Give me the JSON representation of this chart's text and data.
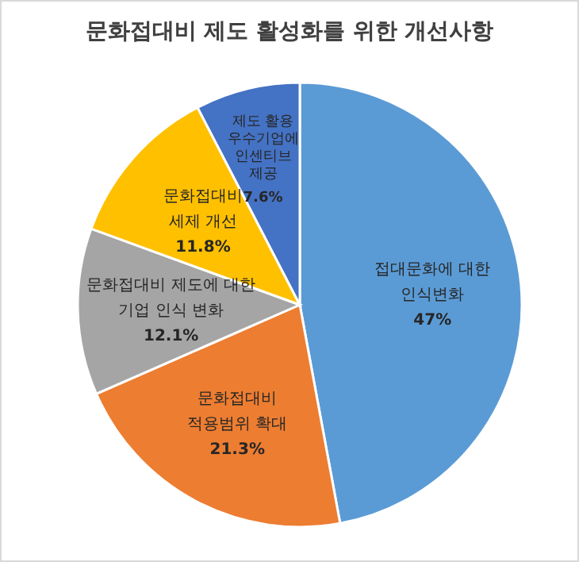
{
  "chart_data": {
    "type": "pie",
    "title": "문화접대비 제도 활성화를 위한 개선사항",
    "categories": [
      "접대문화에 대한\n인식변화",
      "문화접대비\n적용범위 확대",
      "문화접대비 제도에 대한\n기업 인식 변화",
      "문화접대비\n세제 개선",
      "제도 활용\n우수기업에\n인센티브\n제공"
    ],
    "values": [
      47,
      21.3,
      12.1,
      11.8,
      7.6
    ],
    "value_labels": [
      "47%",
      "21.3%",
      "12.1%",
      "11.8%",
      "7.6%"
    ],
    "colors": [
      "#5b9bd5",
      "#ed7d31",
      "#a5a5a5",
      "#ffc000",
      "#4472c4"
    ],
    "legend": false
  }
}
